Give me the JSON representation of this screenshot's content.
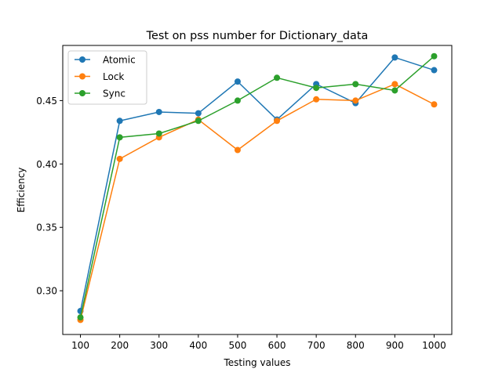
{
  "chart_data": {
    "type": "line",
    "title": "Test on pss number for Dictionary_data",
    "xlabel": "Testing values",
    "ylabel": "Efficiency",
    "x": [
      100,
      200,
      300,
      400,
      500,
      600,
      700,
      800,
      900,
      1000
    ],
    "x_ticks": [
      "100",
      "200",
      "300",
      "400",
      "500",
      "600",
      "700",
      "800",
      "900",
      "1000"
    ],
    "y_ticks": [
      "0.30",
      "0.35",
      "0.40",
      "0.45"
    ],
    "y_tick_values": [
      0.3,
      0.35,
      0.4,
      0.45
    ],
    "xlim": [
      55,
      1045
    ],
    "ylim": [
      0.2655,
      0.4935
    ],
    "grid": false,
    "legend_position": "top-left",
    "series": [
      {
        "name": "Atomic",
        "color": "#1f77b4",
        "values": [
          0.284,
          0.434,
          0.441,
          0.44,
          0.465,
          0.435,
          0.463,
          0.448,
          0.484,
          0.474
        ]
      },
      {
        "name": "Lock",
        "color": "#ff7f0e",
        "values": [
          0.277,
          0.404,
          0.421,
          0.435,
          0.411,
          0.434,
          0.451,
          0.45,
          0.463,
          0.447
        ]
      },
      {
        "name": "Sync",
        "color": "#2ca02c",
        "values": [
          0.279,
          0.421,
          0.424,
          0.434,
          0.45,
          0.468,
          0.46,
          0.463,
          0.458,
          0.485
        ]
      }
    ]
  }
}
